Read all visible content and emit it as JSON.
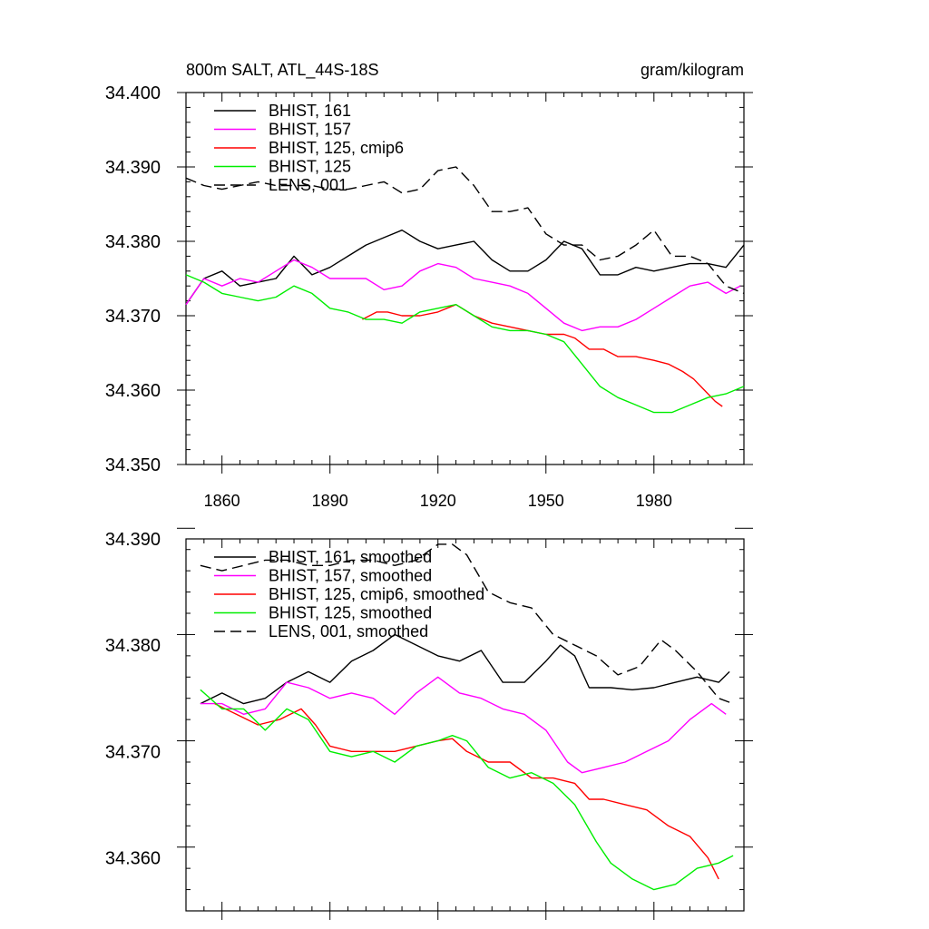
{
  "chart_data": [
    {
      "type": "line",
      "title_left": "800m SALT, ATL_44S-18S",
      "title_right": "gram/kilogram",
      "xlim": [
        1850,
        2005
      ],
      "ylim": [
        34.35,
        34.4
      ],
      "x_ticks": [
        1860,
        1890,
        1920,
        1950,
        1980
      ],
      "y_ticks": [
        "34.350",
        "34.360",
        "34.370",
        "34.380",
        "34.390",
        "34.400"
      ],
      "show_x_tick_labels": true,
      "legend_position": "top-left",
      "series": [
        {
          "name": "BHIST, 161",
          "color": "#000000",
          "dash": false,
          "x": [
            1850,
            1855,
            1860,
            1865,
            1870,
            1875,
            1880,
            1885,
            1890,
            1895,
            1900,
            1905,
            1910,
            1915,
            1920,
            1925,
            1930,
            1935,
            1940,
            1945,
            1950,
            1955,
            1960,
            1965,
            1970,
            1975,
            1980,
            1985,
            1990,
            1995,
            2000,
            2005
          ],
          "y": [
            34.3715,
            34.375,
            34.376,
            34.374,
            34.3745,
            34.375,
            34.378,
            34.3755,
            34.3765,
            34.378,
            34.3795,
            34.3805,
            34.3815,
            34.38,
            34.379,
            34.3795,
            34.38,
            34.3775,
            34.376,
            34.376,
            34.3775,
            34.38,
            34.379,
            34.3755,
            34.3755,
            34.3765,
            34.376,
            34.3765,
            34.377,
            34.377,
            34.3765,
            34.3795
          ]
        },
        {
          "name": "BHIST, 157",
          "color": "#ff00ff",
          "dash": false,
          "x": [
            1850,
            1855,
            1860,
            1865,
            1870,
            1875,
            1880,
            1885,
            1890,
            1895,
            1900,
            1905,
            1910,
            1915,
            1920,
            1925,
            1930,
            1935,
            1940,
            1945,
            1950,
            1955,
            1960,
            1965,
            1970,
            1975,
            1980,
            1985,
            1990,
            1995,
            2000,
            2004
          ],
          "y": [
            34.3715,
            34.375,
            34.374,
            34.375,
            34.3745,
            34.376,
            34.3775,
            34.3765,
            34.375,
            34.375,
            34.375,
            34.3735,
            34.374,
            34.376,
            34.377,
            34.3765,
            34.375,
            34.3745,
            34.374,
            34.373,
            34.371,
            34.369,
            34.368,
            34.3685,
            34.3685,
            34.3695,
            34.371,
            34.3725,
            34.374,
            34.3745,
            34.373,
            34.374
          ]
        },
        {
          "name": "BHIST, 125, cmip6",
          "color": "#ff0000",
          "dash": false,
          "x": [
            1899,
            1903,
            1906,
            1910,
            1915,
            1920,
            1925,
            1930,
            1935,
            1940,
            1945,
            1950,
            1955,
            1958,
            1962,
            1966,
            1970,
            1975,
            1980,
            1984,
            1988,
            1991,
            1994,
            1997,
            1999
          ],
          "y": [
            34.3695,
            34.3705,
            34.3705,
            34.37,
            34.37,
            34.3705,
            34.3715,
            34.37,
            34.369,
            34.3685,
            34.368,
            34.3675,
            34.3675,
            34.367,
            34.3655,
            34.3655,
            34.3645,
            34.3645,
            34.364,
            34.3635,
            34.3625,
            34.3615,
            34.36,
            34.3585,
            34.3578
          ]
        },
        {
          "name": "BHIST, 125",
          "color": "#00ee00",
          "dash": false,
          "x": [
            1850,
            1855,
            1860,
            1865,
            1870,
            1875,
            1880,
            1885,
            1890,
            1895,
            1900,
            1905,
            1910,
            1915,
            1920,
            1925,
            1930,
            1935,
            1940,
            1945,
            1950,
            1955,
            1960,
            1965,
            1970,
            1975,
            1980,
            1985,
            1990,
            1995,
            2000,
            2005
          ],
          "y": [
            34.3755,
            34.3745,
            34.373,
            34.3725,
            34.372,
            34.3725,
            34.374,
            34.373,
            34.371,
            34.3705,
            34.3695,
            34.3695,
            34.369,
            34.3705,
            34.371,
            34.3715,
            34.37,
            34.3685,
            34.368,
            34.368,
            34.3675,
            34.3665,
            34.3635,
            34.3605,
            34.359,
            34.358,
            34.357,
            34.357,
            34.358,
            34.359,
            34.3595,
            34.3605
          ]
        },
        {
          "name": "LENS, 001",
          "color": "#000000",
          "dash": true,
          "x": [
            1850,
            1855,
            1860,
            1865,
            1870,
            1875,
            1880,
            1885,
            1890,
            1895,
            1900,
            1905,
            1910,
            1915,
            1920,
            1925,
            1930,
            1935,
            1940,
            1945,
            1950,
            1955,
            1960,
            1965,
            1970,
            1975,
            1980,
            1985,
            1990,
            1995,
            2000,
            2005
          ],
          "y": [
            34.3885,
            34.3875,
            34.387,
            34.3875,
            34.388,
            34.3875,
            34.3875,
            34.3875,
            34.387,
            34.387,
            34.3875,
            34.388,
            34.3865,
            34.387,
            34.3895,
            34.39,
            34.3875,
            34.384,
            34.384,
            34.3845,
            34.381,
            34.3795,
            34.3795,
            34.3775,
            34.378,
            34.3795,
            34.3815,
            34.378,
            34.378,
            34.377,
            34.374,
            34.373
          ]
        }
      ]
    },
    {
      "type": "line",
      "xlim": [
        1850,
        2005
      ],
      "ylim": [
        34.355,
        34.39
      ],
      "x_ticks": [
        1860,
        1890,
        1920,
        1950,
        1980
      ],
      "y_ticks": [
        "34.360",
        "34.370",
        "34.380",
        "34.390"
      ],
      "show_x_tick_labels": false,
      "legend_position": "top-left",
      "series": [
        {
          "name": "BHIST, 161, smoothed",
          "color": "#000000",
          "dash": false,
          "x": [
            1854,
            1860,
            1866,
            1872,
            1878,
            1884,
            1890,
            1896,
            1902,
            1908,
            1914,
            1920,
            1926,
            1932,
            1938,
            1944,
            1950,
            1954,
            1958,
            1962,
            1968,
            1974,
            1980,
            1986,
            1992,
            1998,
            2001
          ],
          "y": [
            34.3745,
            34.3755,
            34.3745,
            34.375,
            34.3765,
            34.3775,
            34.3765,
            34.3785,
            34.3795,
            34.381,
            34.38,
            34.379,
            34.3785,
            34.3795,
            34.3765,
            34.3765,
            34.3785,
            34.38,
            34.379,
            34.376,
            34.376,
            34.3758,
            34.376,
            34.3765,
            34.377,
            34.3765,
            34.3775
          ]
        },
        {
          "name": "BHIST, 157, smoothed",
          "color": "#ff00ff",
          "dash": false,
          "x": [
            1854,
            1860,
            1866,
            1872,
            1878,
            1884,
            1890,
            1896,
            1902,
            1908,
            1914,
            1920,
            1926,
            1932,
            1938,
            1944,
            1950,
            1956,
            1960,
            1966,
            1972,
            1978,
            1984,
            1990,
            1996,
            2000
          ],
          "y": [
            34.3745,
            34.3745,
            34.3735,
            34.374,
            34.3765,
            34.376,
            34.375,
            34.3755,
            34.375,
            34.3735,
            34.3755,
            34.377,
            34.3755,
            34.375,
            34.374,
            34.3735,
            34.372,
            34.369,
            34.368,
            34.3685,
            34.369,
            34.37,
            34.371,
            34.373,
            34.3745,
            34.3735
          ]
        },
        {
          "name": "BHIST, 125, cmip6, smoothed",
          "color": "#ff0000",
          "dash": false,
          "x": [
            1858,
            1864,
            1870,
            1876,
            1882,
            1886,
            1890,
            1896,
            1902,
            1908,
            1914,
            1920,
            1924,
            1928,
            1934,
            1940,
            1946,
            1952,
            1958,
            1962,
            1966,
            1972,
            1978,
            1984,
            1990,
            1995,
            1998
          ],
          "y": [
            34.3745,
            34.3735,
            34.3725,
            34.373,
            34.374,
            34.3725,
            34.3705,
            34.37,
            34.37,
            34.37,
            34.3705,
            34.371,
            34.3712,
            34.37,
            34.369,
            34.369,
            34.3675,
            34.3675,
            34.367,
            34.3655,
            34.3655,
            34.365,
            34.3645,
            34.363,
            34.362,
            34.36,
            34.358
          ]
        },
        {
          "name": "BHIST, 125, smoothed",
          "color": "#00ee00",
          "dash": false,
          "x": [
            1854,
            1860,
            1866,
            1872,
            1878,
            1884,
            1890,
            1896,
            1902,
            1908,
            1914,
            1920,
            1924,
            1928,
            1934,
            1940,
            1946,
            1952,
            1958,
            1964,
            1968,
            1974,
            1980,
            1986,
            1992,
            1998,
            2002
          ],
          "y": [
            34.3758,
            34.374,
            34.374,
            34.372,
            34.374,
            34.373,
            34.37,
            34.3695,
            34.37,
            34.369,
            34.3705,
            34.371,
            34.3715,
            34.371,
            34.3685,
            34.3675,
            34.368,
            34.367,
            34.365,
            34.3615,
            34.3595,
            34.358,
            34.357,
            34.3575,
            34.359,
            34.3595,
            34.3602
          ]
        },
        {
          "name": "LENS, 001, smoothed",
          "color": "#000000",
          "dash": true,
          "x": [
            1854,
            1860,
            1866,
            1872,
            1878,
            1884,
            1890,
            1896,
            1902,
            1908,
            1914,
            1920,
            1924,
            1928,
            1934,
            1940,
            1946,
            1952,
            1958,
            1964,
            1970,
            1976,
            1982,
            1986,
            1992,
            1998,
            2002
          ],
          "y": [
            34.3875,
            34.387,
            34.3875,
            34.388,
            34.388,
            34.3875,
            34.3875,
            34.388,
            34.388,
            34.3875,
            34.388,
            34.3895,
            34.3895,
            34.3885,
            34.385,
            34.384,
            34.3835,
            34.381,
            34.38,
            34.379,
            34.3772,
            34.378,
            34.3805,
            34.3795,
            34.3775,
            34.375,
            34.3745
          ]
        }
      ]
    }
  ]
}
